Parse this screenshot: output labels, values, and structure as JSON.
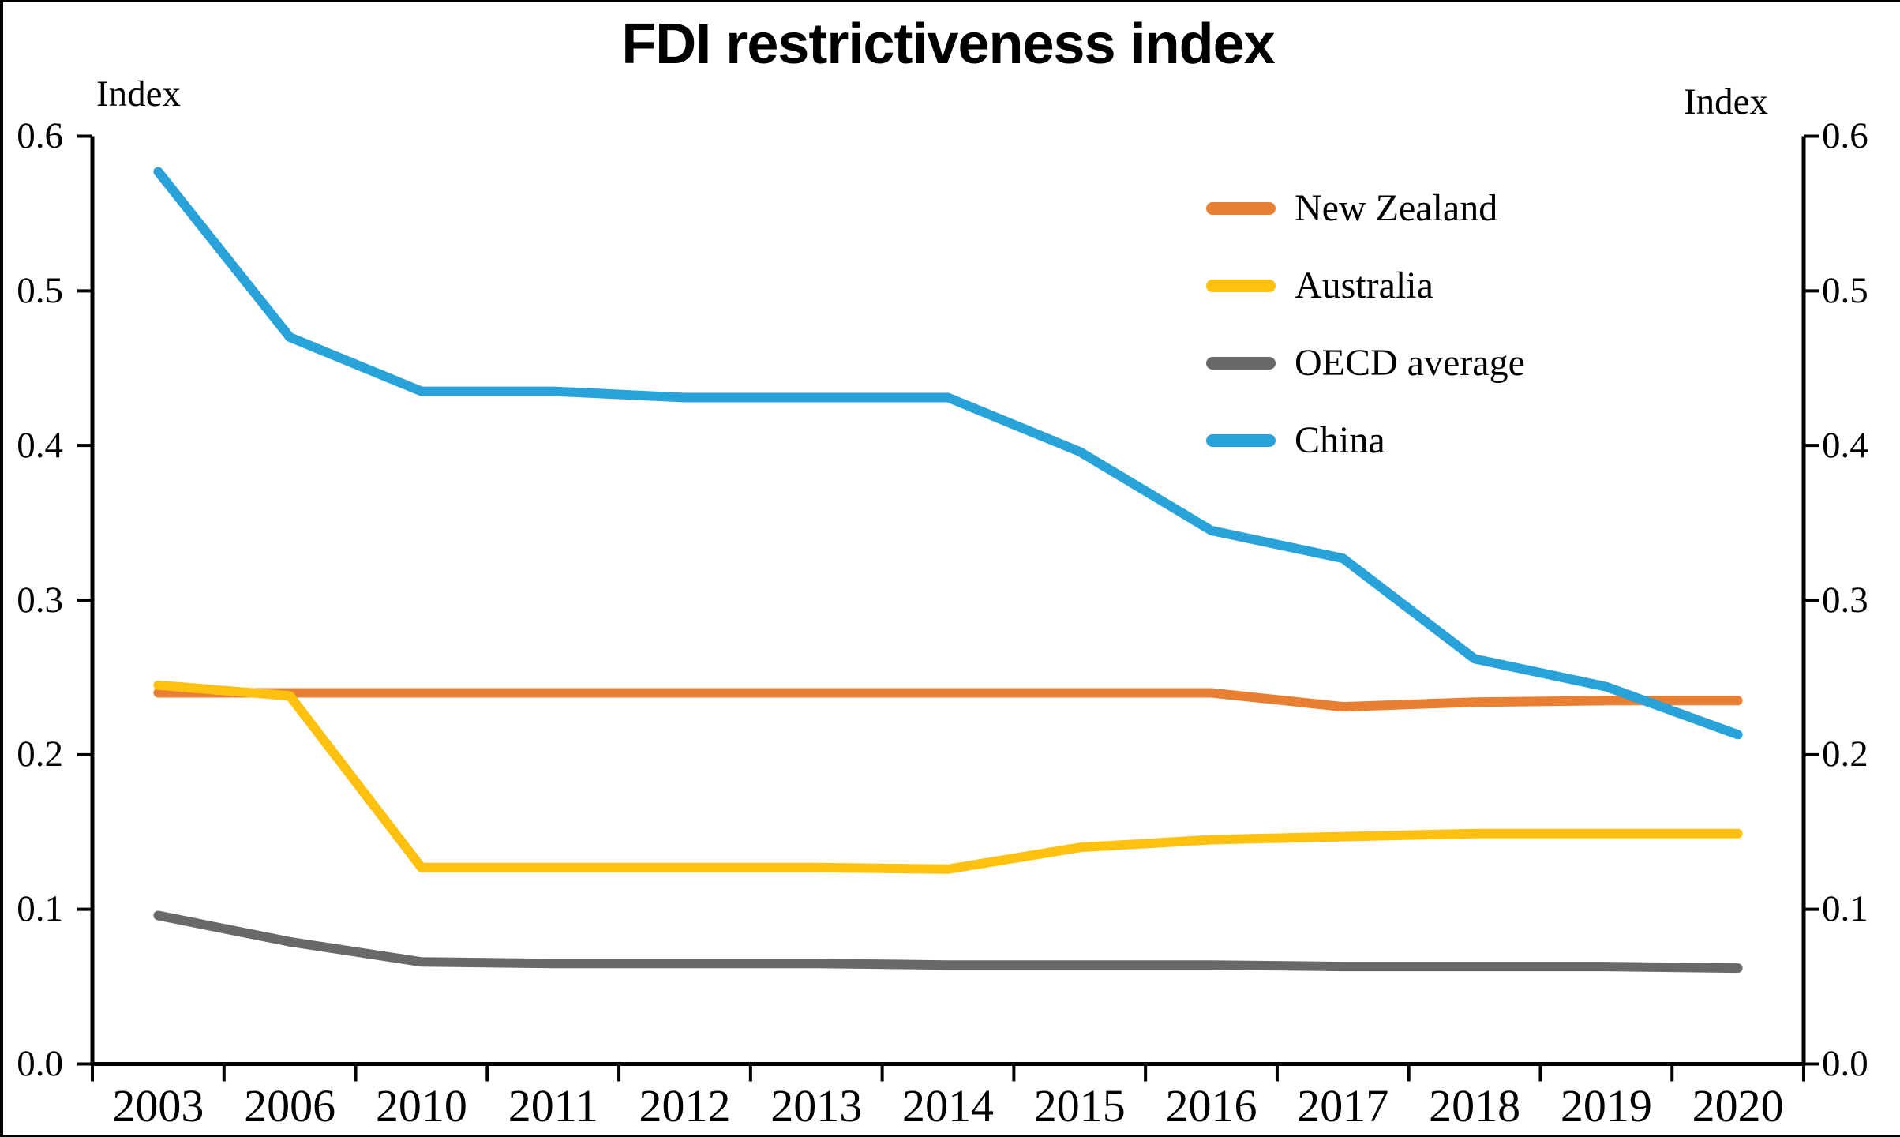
{
  "title": "FDI restrictiveness index",
  "axis_unit_left": "Index",
  "axis_unit_right": "Index",
  "frame_color": "#000000",
  "chart_data": {
    "type": "line",
    "title": "FDI restrictiveness index",
    "categories": [
      "2003",
      "2006",
      "2010",
      "2011",
      "2012",
      "2013",
      "2014",
      "2015",
      "2016",
      "2017",
      "2018",
      "2019",
      "2020"
    ],
    "series": [
      {
        "name": "New Zealand",
        "color": "#E87F33",
        "values": [
          0.24,
          0.24,
          0.24,
          0.24,
          0.24,
          0.24,
          0.24,
          0.24,
          0.24,
          0.231,
          0.234,
          0.235,
          0.235
        ]
      },
      {
        "name": "Australia",
        "color": "#FFC110",
        "values": [
          0.245,
          0.238,
          0.127,
          0.127,
          0.127,
          0.127,
          0.126,
          0.14,
          0.145,
          0.147,
          0.149,
          0.149,
          0.149
        ]
      },
      {
        "name": "OECD average",
        "color": "#696969",
        "values": [
          0.096,
          0.079,
          0.066,
          0.065,
          0.065,
          0.065,
          0.064,
          0.064,
          0.064,
          0.063,
          0.063,
          0.063,
          0.062
        ]
      },
      {
        "name": "China",
        "color": "#29A2DA",
        "values": [
          0.577,
          0.47,
          0.435,
          0.435,
          0.431,
          0.431,
          0.431,
          0.396,
          0.345,
          0.327,
          0.262,
          0.244,
          0.213
        ]
      }
    ],
    "ylim": [
      0.0,
      0.6
    ],
    "ytick_step": 0.1,
    "ytick_labels": [
      "0.0",
      "0.1",
      "0.2",
      "0.3",
      "0.4",
      "0.5",
      "0.6"
    ],
    "ylabel_left": "Index",
    "ylabel_right": "Index",
    "legend_position": "top-right-inside",
    "grid": false,
    "line_width": 12
  }
}
